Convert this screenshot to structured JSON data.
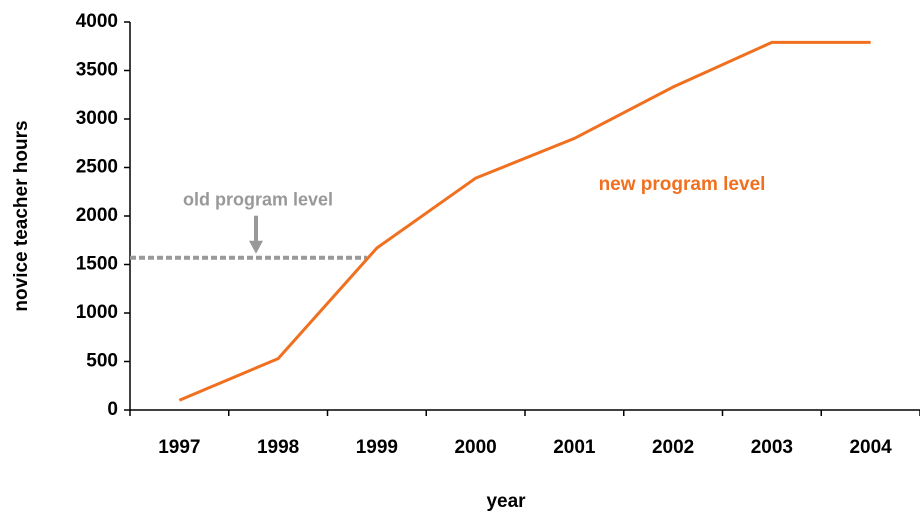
{
  "chart_data": {
    "type": "line",
    "x_label": "year",
    "y_label": "novice teacher hours",
    "categories": [
      "1997",
      "1998",
      "1999",
      "2000",
      "2001",
      "2002",
      "2003",
      "2004"
    ],
    "series": [
      {
        "name": "new program level",
        "color": "#f07020",
        "values": [
          100,
          530,
          1670,
          2390,
          2800,
          3330,
          3790,
          3790
        ]
      }
    ],
    "reference_line": {
      "value": 1570,
      "label": "old program level",
      "color": "#999999"
    },
    "ylim": [
      0,
      4000
    ],
    "yticks": [
      0,
      500,
      1000,
      1500,
      2000,
      2500,
      3000,
      3500,
      4000
    ],
    "grid": false
  }
}
